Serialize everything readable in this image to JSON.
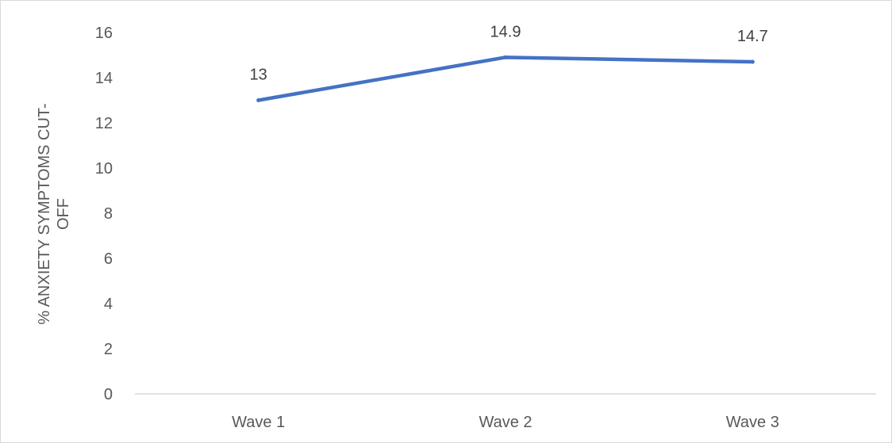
{
  "chart_data": {
    "type": "line",
    "title": "",
    "xlabel": "",
    "ylabel_lines": [
      "% ANXIETY SYMPTOMS CUT-",
      "OFF"
    ],
    "categories": [
      "Wave 1",
      "Wave 2",
      "Wave 3"
    ],
    "series": [
      {
        "values": [
          13,
          14.9,
          14.7
        ],
        "data_labels": [
          "13",
          "14.9",
          "14.7"
        ],
        "color": "#4472c4"
      }
    ],
    "ylim": [
      0,
      16
    ],
    "yticks": [
      0,
      2,
      4,
      6,
      8,
      10,
      12,
      14,
      16
    ],
    "grid": false,
    "legend": "none",
    "axis_color": "#d9d9d9"
  }
}
